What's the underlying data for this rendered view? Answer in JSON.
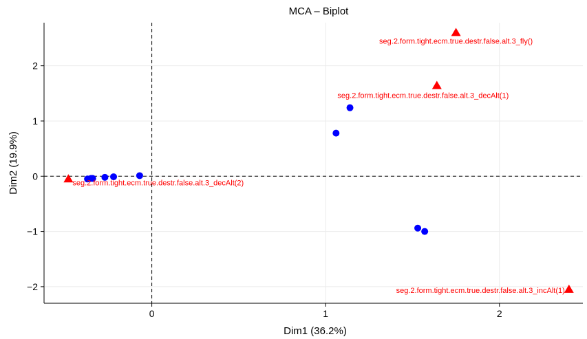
{
  "chart_data": {
    "type": "scatter",
    "title": "MCA – Biplot",
    "xlabel": "Dim1 (36.2%)",
    "ylabel": "Dim2 (19.9%)",
    "xlim": [
      -0.62,
      2.48
    ],
    "ylim": [
      -2.3,
      2.78
    ],
    "x_ticks": [
      0,
      1,
      2
    ],
    "y_ticks": [
      -2,
      -1,
      0,
      1,
      2
    ],
    "grid": true,
    "reference_lines": {
      "x": 0,
      "y": 0,
      "style": "dashed"
    },
    "colors": {
      "individuals": "#0000ff",
      "variables": "#ff0000",
      "grid": "#ebebeb"
    },
    "series": [
      {
        "marker": "circle",
        "points": [
          {
            "x": -0.37,
            "y": -0.05
          },
          {
            "x": -0.35,
            "y": -0.04
          },
          {
            "x": -0.34,
            "y": -0.04
          },
          {
            "x": -0.27,
            "y": -0.02
          },
          {
            "x": -0.22,
            "y": -0.01
          },
          {
            "x": -0.07,
            "y": 0.01
          },
          {
            "x": 1.06,
            "y": 0.78
          },
          {
            "x": 1.14,
            "y": 1.24
          },
          {
            "x": 1.53,
            "y": -0.94
          },
          {
            "x": 1.57,
            "y": -1.0
          }
        ]
      },
      {
        "marker": "triangle",
        "points": [
          {
            "x": 1.75,
            "y": 2.6,
            "label": "seg.2.form.tight.ecm.true.destr.false.alt.3_fly()"
          },
          {
            "x": 1.64,
            "y": 1.64,
            "label": "seg.2.form.tight.ecm.true.destr.false.alt.3_decAlt(1)"
          },
          {
            "x": -0.48,
            "y": -0.05,
            "label": "seg.2.form.tight.ecm.true.destr.false.alt.3_decAlt(2)"
          },
          {
            "x": 2.4,
            "y": -2.05,
            "label": "seg.2.form.tight.ecm.true.destr.false.alt.3_incAlt(1)"
          }
        ]
      }
    ]
  }
}
